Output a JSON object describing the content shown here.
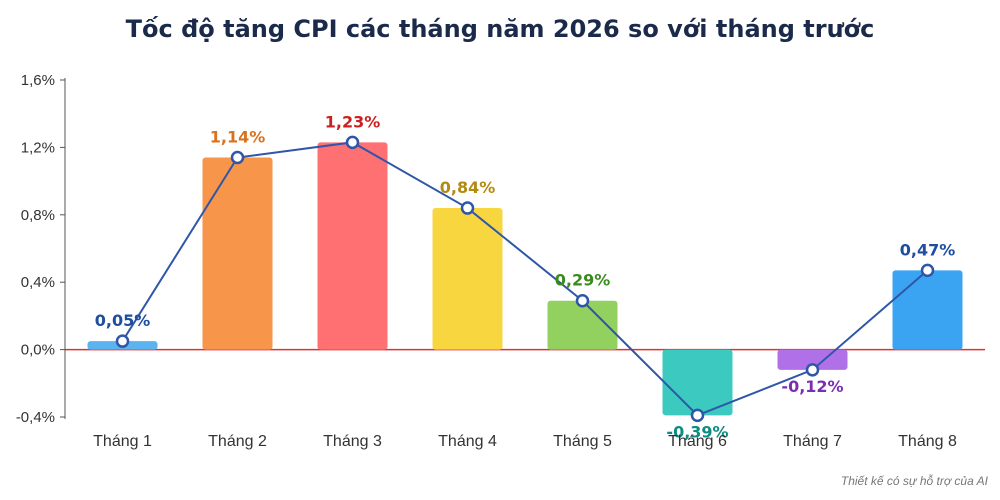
{
  "chart_data": {
    "type": "bar",
    "title": "Tốc độ tăng CPI các tháng năm 2026 so với tháng trước",
    "categories": [
      "Tháng 1",
      "Tháng 2",
      "Tháng 3",
      "Tháng 4",
      "Tháng 5",
      "Tháng 6",
      "Tháng 7",
      "Tháng 8"
    ],
    "values": [
      0.05,
      1.14,
      1.23,
      0.84,
      0.29,
      -0.39,
      -0.12,
      0.47
    ],
    "value_labels": [
      "0,05%",
      "1,14%",
      "1,23%",
      "0,84%",
      "0,29%",
      "-0,39%",
      "-0,12%",
      "0,47%"
    ],
    "overlay_line": true,
    "ylim": [
      -0.4,
      1.6
    ],
    "yticks": [
      -0.4,
      0,
      0.4,
      0.8,
      1.2,
      1.6
    ],
    "ytick_labels": [
      "-0,4%",
      "0,0%",
      "0,4%",
      "0,8%",
      "1,2%",
      "1,6%"
    ],
    "grid": false,
    "colors": {
      "bars": [
        "#5bb3f0",
        "#f7964a",
        "#ff7072",
        "#f7d640",
        "#92d060",
        "#3cc9c0",
        "#b071e8",
        "#3ba4f2"
      ],
      "labels": [
        "#1f4ea0",
        "#d9721e",
        "#cc1f1f",
        "#b38a10",
        "#3b8a1e",
        "#0e8c82",
        "#7a2fb3",
        "#1f4ea0"
      ],
      "line": "#2f56a8",
      "zero_line": "#e03030"
    },
    "footnote": "Thiết kế có sự hỗ trợ của AI"
  }
}
